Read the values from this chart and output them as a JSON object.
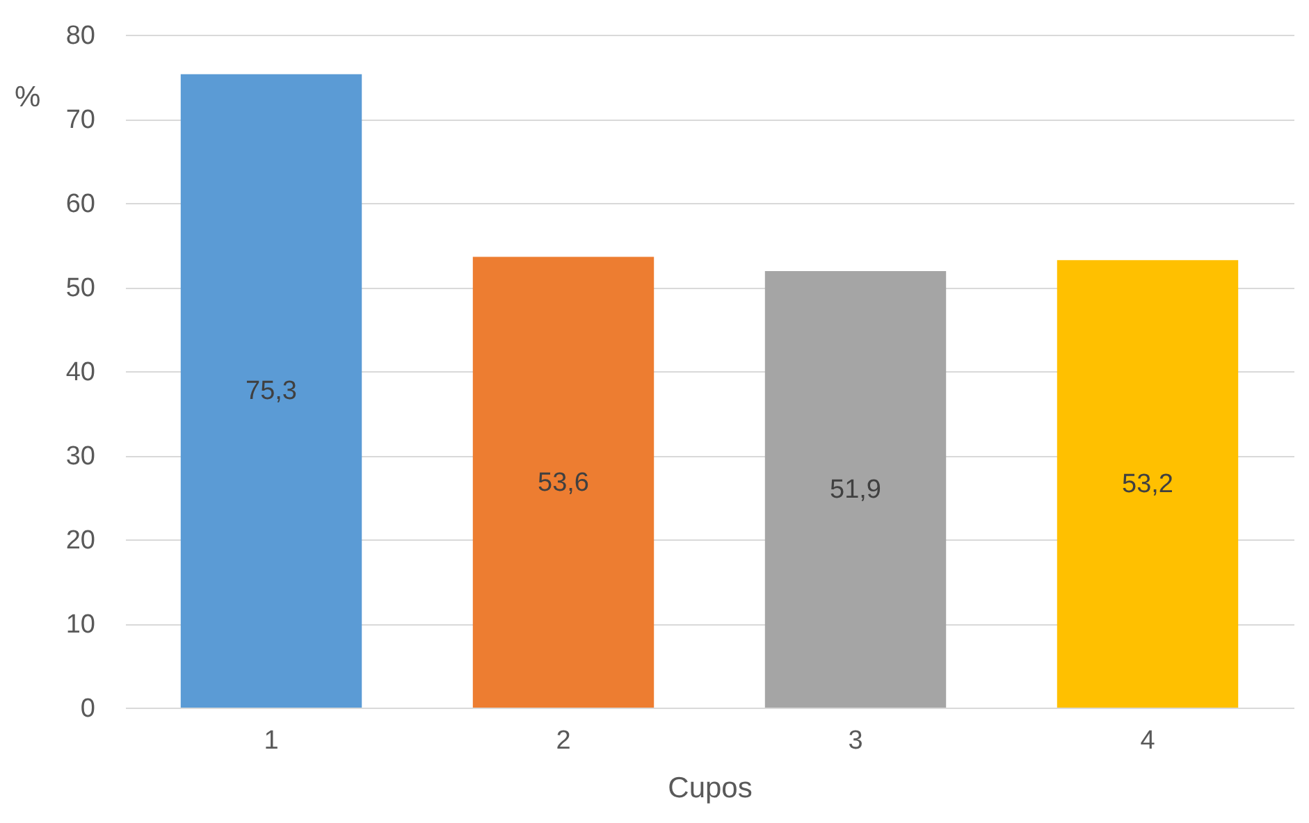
{
  "chart_data": {
    "type": "bar",
    "xlabel": "Cupos",
    "ylabel": "%",
    "categories": [
      "1",
      "2",
      "3",
      "4"
    ],
    "values": [
      75.3,
      53.6,
      51.9,
      53.2
    ],
    "colors": [
      "#5b9bd5",
      "#ed7d31",
      "#a5a5a5",
      "#ffc000"
    ],
    "value_labels": [
      "75,3",
      "53,6",
      "51,9",
      "53,2"
    ],
    "ylim": [
      0,
      80
    ],
    "yticks": [
      0,
      10,
      20,
      30,
      40,
      50,
      60,
      70,
      80
    ],
    "grid": "y"
  }
}
